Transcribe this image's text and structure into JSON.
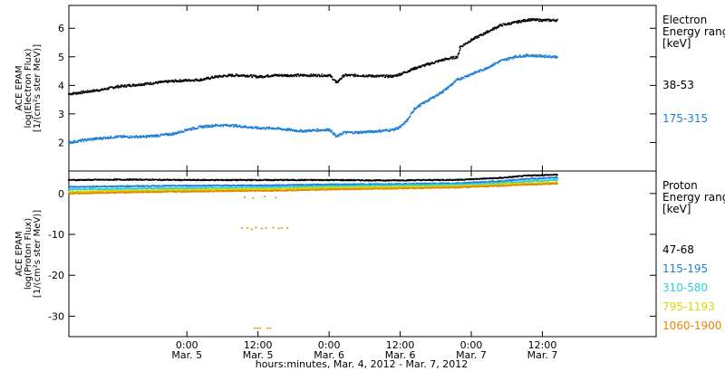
{
  "chart_data": [
    {
      "type": "scatter",
      "panel": "electron",
      "ylabel_lines": [
        "ACE EPAM",
        "log(Electron Flux)",
        "[1/(cm²s ster MeV)]"
      ],
      "ylim": [
        1.0,
        6.8
      ],
      "yticks": [
        "2",
        "3",
        "4",
        "5",
        "6"
      ],
      "ytick_values": [
        2,
        3,
        4,
        5,
        6
      ],
      "legend_title": [
        "Electron",
        "Energy range",
        "[keV]"
      ],
      "series": [
        {
          "name": "38-53",
          "color": "#000000",
          "x": [
            -0.83,
            -0.75,
            -0.6,
            -0.5,
            -0.3,
            -0.1,
            0.1,
            0.2,
            0.3,
            0.4,
            0.5,
            0.6,
            0.8,
            1.0,
            1.05,
            1.1,
            1.2,
            1.35,
            1.45,
            1.5,
            1.6,
            1.7,
            1.8,
            1.9,
            1.92,
            2.0,
            2.1,
            2.2,
            2.3,
            2.4,
            2.5,
            2.6
          ],
          "y": [
            3.7,
            3.75,
            3.85,
            3.95,
            4.05,
            4.15,
            4.2,
            4.3,
            4.35,
            4.35,
            4.3,
            4.35,
            4.35,
            4.35,
            4.1,
            4.35,
            4.35,
            4.32,
            4.32,
            4.4,
            4.6,
            4.75,
            4.9,
            5.0,
            5.35,
            5.6,
            5.85,
            6.1,
            6.2,
            6.3,
            6.28,
            6.28
          ]
        },
        {
          "name": "175-315",
          "color": "#1e7fd6",
          "x": [
            -0.83,
            -0.7,
            -0.5,
            -0.3,
            -0.1,
            0.0,
            0.1,
            0.2,
            0.3,
            0.4,
            0.5,
            0.6,
            0.7,
            0.8,
            1.0,
            1.05,
            1.1,
            1.2,
            1.35,
            1.45,
            1.5,
            1.55,
            1.6,
            1.7,
            1.8,
            1.9,
            2.0,
            2.1,
            2.2,
            2.3,
            2.4,
            2.5,
            2.6
          ],
          "y": [
            2.0,
            2.1,
            2.2,
            2.2,
            2.3,
            2.45,
            2.55,
            2.6,
            2.6,
            2.55,
            2.5,
            2.5,
            2.45,
            2.4,
            2.45,
            2.2,
            2.35,
            2.35,
            2.4,
            2.45,
            2.55,
            2.8,
            3.2,
            3.5,
            3.8,
            4.2,
            4.4,
            4.6,
            4.85,
            5.0,
            5.05,
            5.02,
            5.0
          ]
        }
      ]
    },
    {
      "type": "scatter",
      "panel": "proton",
      "ylabel_lines": [
        "ACE EPAM",
        "log(Proton Flux)",
        "[1/(cm²s ster MeV)]"
      ],
      "ylim": [
        -35.0,
        5.5
      ],
      "yticks": [
        "0",
        "-10",
        "-20",
        "-30"
      ],
      "ytick_values": [
        0,
        -10,
        -20,
        -30
      ],
      "legend_title": [
        "Proton",
        "Energy range",
        "[keV]"
      ],
      "series": [
        {
          "name": "47-68",
          "color": "#000000",
          "x": [
            -0.83,
            -0.4,
            0.0,
            0.6,
            1.0,
            1.4,
            1.9,
            2.2,
            2.4,
            2.6
          ],
          "y": [
            3.3,
            3.4,
            3.3,
            3.3,
            3.3,
            3.2,
            3.35,
            3.8,
            4.4,
            4.6
          ]
        },
        {
          "name": "115-195",
          "color": "#1e7fd6",
          "x": [
            -0.83,
            -0.4,
            0.0,
            0.6,
            1.0,
            1.4,
            1.9,
            2.2,
            2.4,
            2.6
          ],
          "y": [
            1.6,
            1.8,
            1.9,
            2.0,
            2.2,
            2.3,
            2.5,
            3.0,
            3.6,
            3.9
          ]
        },
        {
          "name": "310-580",
          "color": "#2ed0d8",
          "x": [
            -0.83,
            -0.4,
            0.0,
            0.6,
            1.0,
            1.4,
            1.9,
            2.2,
            2.4,
            2.6
          ],
          "y": [
            1.0,
            1.2,
            1.3,
            1.5,
            1.8,
            2.0,
            2.2,
            2.6,
            3.0,
            3.3
          ]
        },
        {
          "name": "795-1193",
          "color": "#d8d800",
          "x": [
            -0.83,
            -0.4,
            0.0,
            0.6,
            1.0,
            1.4,
            1.9,
            2.2,
            2.4,
            2.6
          ],
          "y": [
            0.4,
            0.7,
            0.9,
            1.1,
            1.4,
            1.6,
            1.8,
            2.2,
            2.5,
            2.7
          ]
        },
        {
          "name": "1060-1900",
          "color": "#e08a00",
          "x": [
            -0.83,
            -0.4,
            0.0,
            0.6,
            1.0,
            1.4,
            1.9,
            2.2,
            2.4,
            2.6
          ],
          "y": [
            0.0,
            0.3,
            0.5,
            0.7,
            1.0,
            1.2,
            1.5,
            1.9,
            2.2,
            2.4
          ]
        }
      ],
      "scatter_points": {
        "color": "#e08a00",
        "x": [
          0.38,
          0.42,
          0.45,
          0.48,
          0.52,
          0.55,
          0.6,
          0.64,
          0.66,
          0.7,
          0.4,
          0.46,
          0.54,
          0.62,
          0.47,
          0.49,
          0.51,
          0.56,
          0.58
        ],
        "y": [
          -8.5,
          -8.5,
          -8.8,
          -8.4,
          -8.6,
          -8.5,
          -8.4,
          -8.6,
          -8.5,
          -8.5,
          -1.0,
          -1.2,
          -0.8,
          -1.1,
          -33.0,
          -33.0,
          -33.0,
          -33.0,
          -33.0
        ]
      }
    }
  ],
  "x_axis": {
    "xlim": [
      -0.83,
      3.3
    ],
    "ticks": [
      {
        "value": 0.0,
        "time": "0:00",
        "date": "Mar. 5"
      },
      {
        "value": 0.5,
        "time": "12:00",
        "date": "Mar. 5"
      },
      {
        "value": 1.0,
        "time": "0:00",
        "date": "Mar. 6"
      },
      {
        "value": 1.5,
        "time": "12:00",
        "date": "Mar. 6"
      },
      {
        "value": 2.0,
        "time": "0:00",
        "date": "Mar. 7"
      },
      {
        "value": 2.5,
        "time": "12:00",
        "date": "Mar. 7"
      }
    ],
    "label": "hours:minutes, Mar.  4, 2012 - Mar.  7, 2012"
  }
}
